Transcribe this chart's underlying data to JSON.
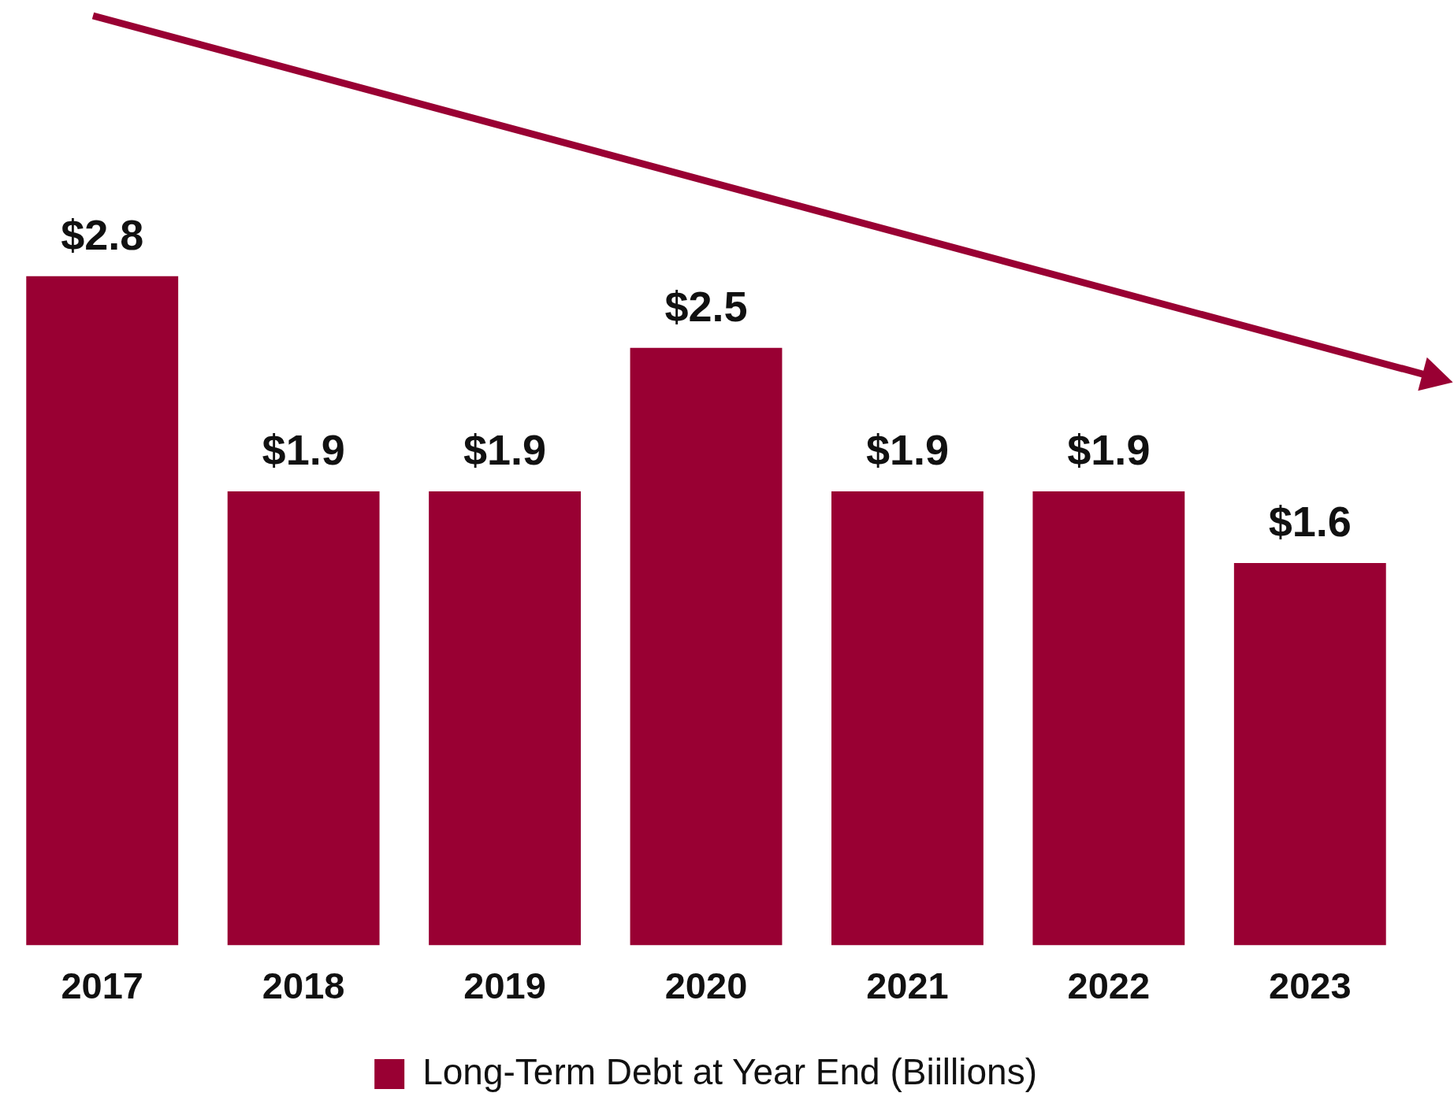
{
  "chart_data": {
    "type": "bar",
    "categories": [
      "2017",
      "2018",
      "2019",
      "2020",
      "2021",
      "2022",
      "2023"
    ],
    "series": [
      {
        "name": "Long-Term Debt at Year End (Biillions)",
        "color": "#990033",
        "values": [
          2.8,
          1.9,
          1.9,
          2.5,
          1.9,
          1.9,
          1.6
        ],
        "value_labels": [
          "$2.8",
          "$1.9",
          "$1.9",
          "$2.5",
          "$1.9",
          "$1.9",
          "$1.6"
        ]
      }
    ],
    "legend": "bottom",
    "grid": false
  }
}
